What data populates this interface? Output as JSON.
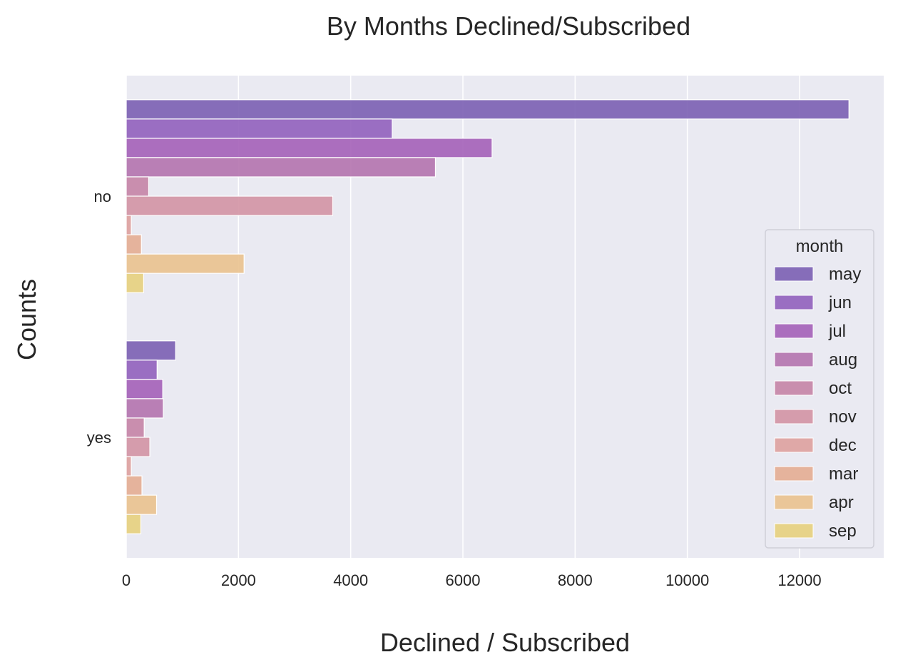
{
  "chart_data": {
    "type": "bar",
    "orientation": "horizontal",
    "title": "By Months Declined/Subscribed",
    "xlabel": "Declined / Subscribed",
    "ylabel": "Counts",
    "categories": [
      "no",
      "yes"
    ],
    "xlim": [
      0,
      13500
    ],
    "xticks": [
      "0",
      "2000",
      "4000",
      "6000",
      "8000",
      "10000",
      "12000"
    ],
    "xtick_values": [
      0,
      2000,
      4000,
      6000,
      8000,
      10000,
      12000
    ],
    "grid": true,
    "legend_title": "month",
    "legend_position": "center-right",
    "series": [
      {
        "name": "may",
        "color": "#7b5fb3",
        "values": [
          12880,
          880
        ]
      },
      {
        "name": "jun",
        "color": "#9160bd",
        "values": [
          4740,
          550
        ]
      },
      {
        "name": "jul",
        "color": "#a460b8",
        "values": [
          6520,
          650
        ]
      },
      {
        "name": "aug",
        "color": "#b473ae",
        "values": [
          5510,
          660
        ]
      },
      {
        "name": "oct",
        "color": "#c584a6",
        "values": [
          400,
          320
        ]
      },
      {
        "name": "nov",
        "color": "#d394a4",
        "values": [
          3680,
          420
        ]
      },
      {
        "name": "dec",
        "color": "#dea19e",
        "values": [
          90,
          90
        ]
      },
      {
        "name": "mar",
        "color": "#e4ad92",
        "values": [
          270,
          280
        ]
      },
      {
        "name": "apr",
        "color": "#eac28e",
        "values": [
          2100,
          540
        ]
      },
      {
        "name": "sep",
        "color": "#e7d07d",
        "values": [
          310,
          260
        ]
      }
    ]
  }
}
